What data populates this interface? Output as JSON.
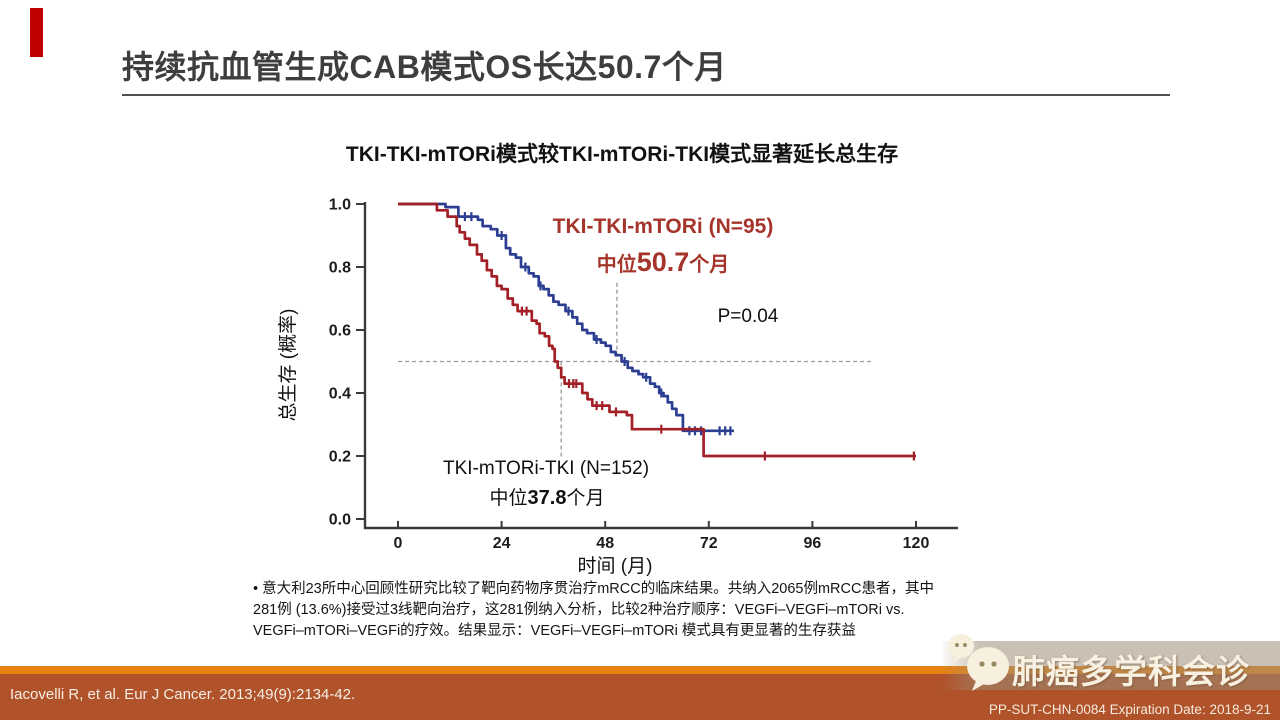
{
  "slide": {
    "title": "持续抗血管生成CAB模式OS长达50.7个月",
    "accent_color": "#C00000"
  },
  "chart": {
    "title": "TKI-TKI-mTORi模式较TKI-mTORi-TKI模式显著延长总生存",
    "y_axis_label": "总生存 (概率)",
    "x_axis_label": "时间 (月)",
    "labels": {
      "series1_label": "TKI-TKI-mTORi  (N=95)",
      "series1_median_prefix": "中位",
      "series1_median_value": "50.7",
      "series1_median_suffix": "个月",
      "p_value": "P=0.04",
      "series2_label": "TKI-mTORi-TKI  (N=152)",
      "series2_median_prefix": "中位",
      "series2_median_value": "37.8",
      "series2_median_suffix": "个月"
    }
  },
  "chart_data": {
    "type": "line",
    "subtype": "kaplan-meier",
    "title": "TKI-TKI-mTORi模式较TKI-mTORi-TKI模式显著延长总生存",
    "xlabel": "时间 (月)",
    "ylabel": "总生存 (概率)",
    "xlim": [
      0,
      132
    ],
    "ylim": [
      0,
      1.0
    ],
    "x_ticks": [
      0,
      24,
      48,
      72,
      96,
      120
    ],
    "y_ticks": [
      1.0,
      0.8,
      0.6,
      0.4,
      0.2,
      0.0
    ],
    "p_value": "P=0.04",
    "reference_probability": 0.5,
    "series": [
      {
        "name": "TKI-TKI-mTORi",
        "n": 95,
        "median_months": 50.7,
        "color": "#2B3E92",
        "steps": [
          [
            0,
            1
          ],
          [
            11,
            0.99
          ],
          [
            14,
            0.96
          ],
          [
            18.5,
            0.95
          ],
          [
            19.6,
            0.93
          ],
          [
            21.5,
            0.92
          ],
          [
            23,
            0.9
          ],
          [
            25,
            0.86
          ],
          [
            26,
            0.84
          ],
          [
            27.3,
            0.83
          ],
          [
            28.5,
            0.8
          ],
          [
            30.3,
            0.78
          ],
          [
            31.4,
            0.77
          ],
          [
            32.6,
            0.74
          ],
          [
            33.7,
            0.73
          ],
          [
            34.9,
            0.71
          ],
          [
            36,
            0.69
          ],
          [
            37.2,
            0.68
          ],
          [
            38.8,
            0.66
          ],
          [
            40.4,
            0.64
          ],
          [
            41.5,
            0.62
          ],
          [
            42.7,
            0.6
          ],
          [
            43.8,
            0.59
          ],
          [
            45.4,
            0.57
          ],
          [
            47,
            0.56
          ],
          [
            48.1,
            0.55
          ],
          [
            49.3,
            0.53
          ],
          [
            50.4,
            0.52
          ],
          [
            51.8,
            0.5
          ],
          [
            53.2,
            0.48
          ],
          [
            54.3,
            0.47
          ],
          [
            55.7,
            0.46
          ],
          [
            56.8,
            0.45
          ],
          [
            58.4,
            0.43
          ],
          [
            59.5,
            0.42
          ],
          [
            60.5,
            0.4
          ],
          [
            61.5,
            0.39
          ],
          [
            62.5,
            0.37
          ],
          [
            63.5,
            0.35
          ],
          [
            64.5,
            0.33
          ],
          [
            66,
            0.28
          ],
          [
            77.8,
            0.28
          ]
        ],
        "censors": [
          [
            15.5,
            0.96
          ],
          [
            17,
            0.96
          ],
          [
            24,
            0.9
          ],
          [
            29.5,
            0.8
          ],
          [
            33,
            0.74
          ],
          [
            39.5,
            0.66
          ],
          [
            46,
            0.57
          ],
          [
            52.5,
            0.5
          ],
          [
            57.5,
            0.45
          ],
          [
            61,
            0.4
          ],
          [
            67.5,
            0.28
          ],
          [
            68.8,
            0.28
          ],
          [
            70.2,
            0.28
          ],
          [
            74.5,
            0.28
          ],
          [
            75.8,
            0.28
          ],
          [
            77,
            0.28
          ]
        ]
      },
      {
        "name": "TKI-mTORi-TKI",
        "n": 152,
        "median_months": 37.8,
        "color": "#A32026",
        "steps": [
          [
            0,
            1
          ],
          [
            7.5,
            1
          ],
          [
            9,
            0.98
          ],
          [
            11.5,
            0.96
          ],
          [
            13.6,
            0.93
          ],
          [
            14.3,
            0.91
          ],
          [
            15.5,
            0.89
          ],
          [
            16.6,
            0.87
          ],
          [
            18.3,
            0.84
          ],
          [
            19.4,
            0.82
          ],
          [
            20.6,
            0.79
          ],
          [
            21.7,
            0.77
          ],
          [
            22.9,
            0.74
          ],
          [
            24,
            0.73
          ],
          [
            25.4,
            0.7
          ],
          [
            26.6,
            0.68
          ],
          [
            27.7,
            0.66
          ],
          [
            31,
            0.63
          ],
          [
            32.1,
            0.62
          ],
          [
            32.8,
            0.59
          ],
          [
            34,
            0.58
          ],
          [
            35,
            0.55
          ],
          [
            35.8,
            0.54
          ],
          [
            36.3,
            0.5
          ],
          [
            37,
            0.48
          ],
          [
            37.8,
            0.45
          ],
          [
            38.6,
            0.43
          ],
          [
            42.7,
            0.4
          ],
          [
            43.9,
            0.38
          ],
          [
            45,
            0.36
          ],
          [
            49,
            0.34
          ],
          [
            53,
            0.33
          ],
          [
            54.2,
            0.285
          ],
          [
            70.8,
            0.2
          ],
          [
            120,
            0.2
          ]
        ],
        "censors": [
          [
            28.7,
            0.66
          ],
          [
            29.8,
            0.66
          ],
          [
            39.6,
            0.43
          ],
          [
            40.6,
            0.43
          ],
          [
            41.3,
            0.43
          ],
          [
            46,
            0.36
          ],
          [
            47.3,
            0.36
          ],
          [
            50.5,
            0.34
          ],
          [
            61,
            0.285
          ],
          [
            85,
            0.2
          ],
          [
            119.5,
            0.2
          ]
        ]
      }
    ],
    "legend_position": "annotations-on-plot",
    "grid": false
  },
  "bullet": {
    "lines": [
      "•   意大利23所中心回顾性研究比较了靶向药物序贯治疗mRCC的临床结果。共纳入2065例mRCC患者，其中",
      "281例 (13.6%)接受过3线靶向治疗，这281例纳入分析，比较2种治疗顺序：VEGFi–VEGFi–mTORi  vs.",
      "VEGFi–mTORi–VEGFi的疗效。结果显示：VEGFi–VEGFi–mTORi 模式具有更显著的生存获益"
    ]
  },
  "footer": {
    "citation": "Iacovelli R, et al. Eur J Cancer. 2013;49(9):2134-42.",
    "code": "PP-SUT-CHN-0084  Expiration Date: 2018-9-21",
    "logo_text": "肺癌多学科会诊",
    "stripe_color": "#E8820F",
    "band_color": "#B0522A"
  }
}
